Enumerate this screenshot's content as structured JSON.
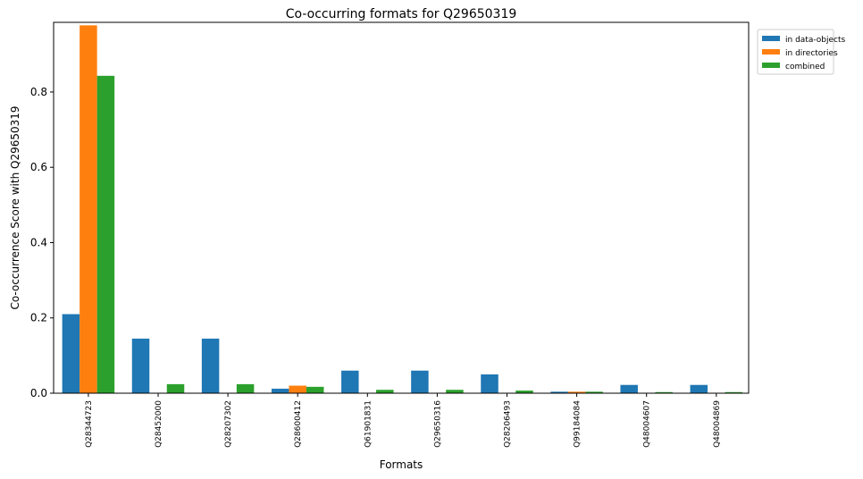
{
  "chart_data": {
    "type": "bar",
    "title": "Co-occurring formats for Q29650319",
    "xlabel": "Formats",
    "ylabel": "Co-occurrence Score with Q29650319",
    "categories": [
      "Q28344723",
      "Q28452000",
      "Q28207302",
      "Q28600412",
      "Q61901831",
      "Q29650316",
      "Q28206493",
      "Q99184084",
      "Q48004607",
      "Q48004869"
    ],
    "series": [
      {
        "name": "in data-objects",
        "color": "#1f77b4",
        "values": [
          0.21,
          0.145,
          0.145,
          0.012,
          0.06,
          0.06,
          0.05,
          0.004,
          0.022,
          0.022
        ]
      },
      {
        "name": "in directories",
        "color": "#ff7f0e",
        "values": [
          0.977,
          0.0,
          0.0,
          0.02,
          0.0,
          0.0,
          0.0,
          0.004,
          0.0,
          0.0
        ]
      },
      {
        "name": "combined",
        "color": "#2ca02c",
        "values": [
          0.843,
          0.024,
          0.024,
          0.017,
          0.009,
          0.009,
          0.007,
          0.004,
          0.003,
          0.003
        ]
      }
    ],
    "ylim": [
      0,
      0.985
    ],
    "yticks": [
      0.0,
      0.2,
      0.4,
      0.6,
      0.8
    ],
    "ytick_labels": [
      "0.0",
      "0.2",
      "0.4",
      "0.6",
      "0.8"
    ],
    "grid": false,
    "legend": "outside-top-right"
  }
}
